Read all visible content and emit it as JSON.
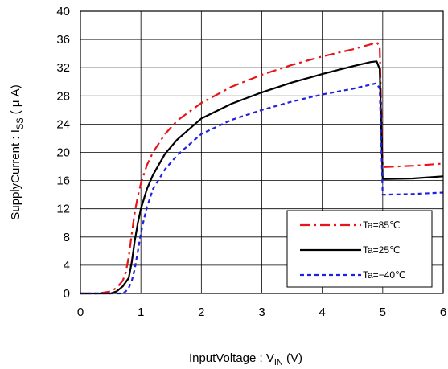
{
  "chart_data": {
    "type": "line",
    "xlabel": {
      "main": "InputVoltage : V",
      "sub": "IN",
      "unit": " (V)"
    },
    "ylabel": {
      "main": "SupplyCurrent : I",
      "sub": "SS",
      "unit": " ( μ A)"
    },
    "xlim": [
      0,
      6
    ],
    "ylim": [
      0,
      40
    ],
    "xticks": [
      "0",
      "1",
      "2",
      "3",
      "4",
      "5",
      "6"
    ],
    "yticks": [
      "0",
      "4",
      "8",
      "12",
      "16",
      "20",
      "24",
      "28",
      "32",
      "36",
      "40"
    ],
    "grid": true,
    "legend_position": "bottom-right",
    "series": [
      {
        "name": "Ta=85℃",
        "color": "#e8141a",
        "dash": "dashdot",
        "x": [
          0,
          0.3,
          0.5,
          0.6,
          0.7,
          0.75,
          0.8,
          0.85,
          0.9,
          0.95,
          1.0,
          1.1,
          1.2,
          1.4,
          1.6,
          2.0,
          2.5,
          3.0,
          3.5,
          4.0,
          4.5,
          4.8,
          4.9,
          4.95,
          5.0,
          5.5,
          6.0
        ],
        "y": [
          0,
          0,
          0.3,
          0.8,
          1.8,
          3.0,
          5.2,
          8.5,
          11.5,
          13.8,
          15.6,
          18.2,
          20.0,
          22.6,
          24.5,
          27.0,
          29.3,
          31.0,
          32.4,
          33.6,
          34.6,
          35.3,
          35.6,
          35.0,
          17.9,
          18.1,
          18.4
        ]
      },
      {
        "name": "Ta=25℃",
        "color": "#000000",
        "dash": "solid",
        "x": [
          0,
          0.5,
          0.6,
          0.7,
          0.8,
          0.85,
          0.9,
          0.95,
          1.0,
          1.1,
          1.2,
          1.4,
          1.6,
          2.0,
          2.5,
          3.0,
          3.5,
          4.0,
          4.5,
          4.8,
          4.9,
          4.95,
          5.0,
          5.5,
          6.0
        ],
        "y": [
          0,
          0,
          0.3,
          1.0,
          2.2,
          4.5,
          7.5,
          10.0,
          12.0,
          14.8,
          16.8,
          19.8,
          21.8,
          24.8,
          26.9,
          28.5,
          29.9,
          31.1,
          32.2,
          32.8,
          32.9,
          31.8,
          16.2,
          16.3,
          16.6
        ]
      },
      {
        "name": "Ta=−40℃",
        "color": "#2020e0",
        "dash": "dotted",
        "x": [
          0,
          0.7,
          0.75,
          0.8,
          0.85,
          0.9,
          0.95,
          1.0,
          1.05,
          1.1,
          1.2,
          1.4,
          1.6,
          2.0,
          2.5,
          3.0,
          3.5,
          4.0,
          4.5,
          4.8,
          4.9,
          4.95,
          5.0,
          5.5,
          6.0
        ],
        "y": [
          0,
          0,
          0.3,
          0.8,
          1.8,
          3.5,
          6.0,
          8.5,
          10.5,
          12.2,
          14.8,
          17.6,
          19.6,
          22.6,
          24.6,
          26.0,
          27.2,
          28.2,
          29.0,
          29.6,
          29.8,
          29.0,
          14.0,
          14.1,
          14.3
        ]
      }
    ]
  }
}
